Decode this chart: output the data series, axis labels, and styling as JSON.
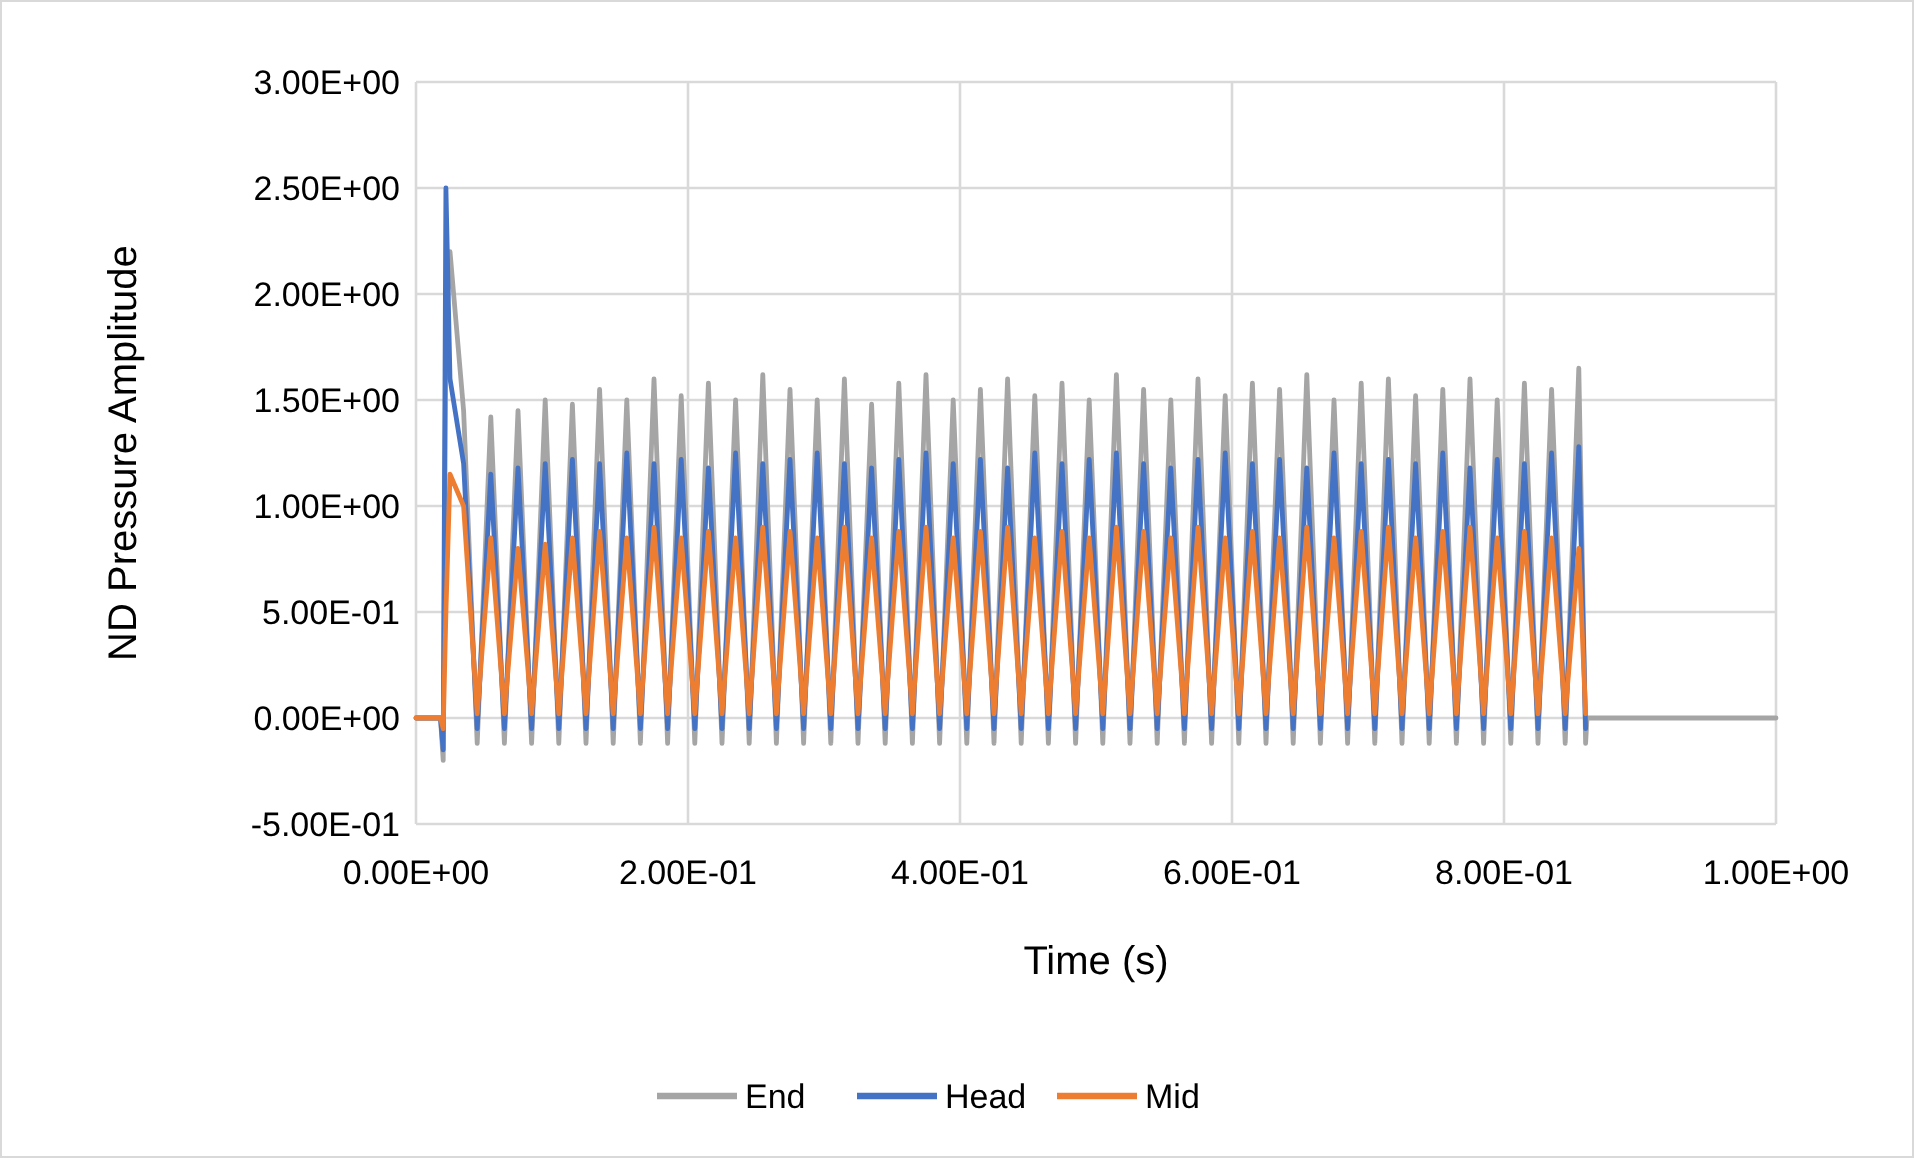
{
  "chart_data": {
    "type": "line",
    "xlabel": "Time (s)",
    "ylabel": "ND Pressure Amplitude",
    "x": [
      0,
      0.018,
      0.02,
      0.022,
      0.025,
      0.035,
      0.045,
      0.055,
      0.065,
      0.075,
      0.085,
      0.095,
      0.105,
      0.115,
      0.125,
      0.135,
      0.145,
      0.155,
      0.165,
      0.175,
      0.185,
      0.195,
      0.205,
      0.215,
      0.225,
      0.235,
      0.245,
      0.255,
      0.265,
      0.275,
      0.285,
      0.295,
      0.305,
      0.315,
      0.325,
      0.335,
      0.345,
      0.355,
      0.365,
      0.375,
      0.385,
      0.395,
      0.405,
      0.415,
      0.425,
      0.435,
      0.445,
      0.455,
      0.465,
      0.475,
      0.485,
      0.495,
      0.505,
      0.515,
      0.525,
      0.535,
      0.545,
      0.555,
      0.565,
      0.575,
      0.585,
      0.595,
      0.605,
      0.615,
      0.625,
      0.635,
      0.645,
      0.655,
      0.665,
      0.675,
      0.685,
      0.695,
      0.705,
      0.715,
      0.725,
      0.735,
      0.745,
      0.755,
      0.765,
      0.775,
      0.785,
      0.795,
      0.805,
      0.815,
      0.825,
      0.835,
      0.845,
      0.855,
      0.86,
      0.861,
      1.0
    ],
    "series": [
      {
        "name": "End",
        "color": "#a5a5a5",
        "values": [
          0,
          0,
          -0.2,
          1.8,
          2.2,
          1.45,
          -0.12,
          1.42,
          -0.12,
          1.45,
          -0.12,
          1.5,
          -0.12,
          1.48,
          -0.12,
          1.55,
          -0.12,
          1.5,
          -0.12,
          1.6,
          -0.12,
          1.52,
          -0.12,
          1.58,
          -0.12,
          1.5,
          -0.12,
          1.62,
          -0.12,
          1.55,
          -0.12,
          1.5,
          -0.12,
          1.6,
          -0.12,
          1.48,
          -0.12,
          1.58,
          -0.12,
          1.62,
          -0.12,
          1.5,
          -0.12,
          1.55,
          -0.12,
          1.6,
          -0.12,
          1.52,
          -0.12,
          1.58,
          -0.12,
          1.5,
          -0.12,
          1.62,
          -0.12,
          1.55,
          -0.12,
          1.5,
          -0.12,
          1.6,
          -0.12,
          1.52,
          -0.12,
          1.58,
          -0.12,
          1.55,
          -0.12,
          1.62,
          -0.12,
          1.5,
          -0.12,
          1.58,
          -0.12,
          1.6,
          -0.12,
          1.52,
          -0.12,
          1.55,
          -0.12,
          1.6,
          -0.12,
          1.5,
          -0.12,
          1.58,
          -0.12,
          1.55,
          -0.12,
          1.65,
          -0.12,
          0,
          0
        ]
      },
      {
        "name": "Head",
        "color": "#4472c4",
        "values": [
          0,
          0,
          -0.15,
          2.5,
          1.6,
          1.2,
          -0.05,
          1.15,
          -0.05,
          1.18,
          -0.05,
          1.2,
          -0.05,
          1.22,
          -0.05,
          1.2,
          -0.05,
          1.25,
          -0.05,
          1.2,
          -0.05,
          1.22,
          -0.05,
          1.18,
          -0.05,
          1.25,
          -0.05,
          1.2,
          -0.05,
          1.22,
          -0.05,
          1.25,
          -0.05,
          1.2,
          -0.05,
          1.18,
          -0.05,
          1.22,
          -0.05,
          1.25,
          -0.05,
          1.2,
          -0.05,
          1.22,
          -0.05,
          1.18,
          -0.05,
          1.25,
          -0.05,
          1.2,
          -0.05,
          1.22,
          -0.05,
          1.25,
          -0.05,
          1.2,
          -0.05,
          1.18,
          -0.05,
          1.22,
          -0.05,
          1.25,
          -0.05,
          1.2,
          -0.05,
          1.22,
          -0.05,
          1.18,
          -0.05,
          1.25,
          -0.05,
          1.2,
          -0.05,
          1.22,
          -0.05,
          1.2,
          -0.05,
          1.25,
          -0.05,
          1.18,
          -0.05,
          1.22,
          -0.05,
          1.2,
          -0.05,
          1.25,
          -0.05,
          1.28,
          -0.05,
          null,
          null
        ]
      },
      {
        "name": "Mid",
        "color": "#ed7d31",
        "values": [
          0,
          0,
          -0.05,
          0.5,
          1.15,
          1.0,
          0.02,
          0.85,
          0.02,
          0.8,
          0.02,
          0.82,
          0.02,
          0.85,
          0.02,
          0.88,
          0.02,
          0.85,
          0.02,
          0.9,
          0.02,
          0.85,
          0.02,
          0.88,
          0.02,
          0.85,
          0.02,
          0.9,
          0.02,
          0.88,
          0.02,
          0.85,
          0.02,
          0.9,
          0.02,
          0.85,
          0.02,
          0.88,
          0.02,
          0.9,
          0.02,
          0.85,
          0.02,
          0.88,
          0.02,
          0.9,
          0.02,
          0.85,
          0.02,
          0.88,
          0.02,
          0.85,
          0.02,
          0.9,
          0.02,
          0.88,
          0.02,
          0.85,
          0.02,
          0.9,
          0.02,
          0.85,
          0.02,
          0.88,
          0.02,
          0.85,
          0.02,
          0.9,
          0.02,
          0.85,
          0.02,
          0.88,
          0.02,
          0.9,
          0.02,
          0.85,
          0.02,
          0.88,
          0.02,
          0.9,
          0.02,
          0.85,
          0.02,
          0.88,
          0.02,
          0.85,
          0.02,
          0.8,
          0.02,
          null,
          null
        ]
      }
    ],
    "xlim": [
      0,
      1
    ],
    "xticks": [
      {
        "value": 0,
        "label": "0.00E+00"
      },
      {
        "value": 0.2,
        "label": "2.00E-01"
      },
      {
        "value": 0.4,
        "label": "4.00E-01"
      },
      {
        "value": 0.6,
        "label": "6.00E-01"
      },
      {
        "value": 0.8,
        "label": "8.00E-01"
      },
      {
        "value": 1,
        "label": "1.00E+00"
      }
    ],
    "ylim": [
      -0.5,
      3
    ],
    "yticks": [
      {
        "value": -0.5,
        "label": "-5.00E-01"
      },
      {
        "value": 0,
        "label": "0.00E+00"
      },
      {
        "value": 0.5,
        "label": "5.00E-01"
      },
      {
        "value": 1,
        "label": "1.00E+00"
      },
      {
        "value": 1.5,
        "label": "1.50E+00"
      },
      {
        "value": 2,
        "label": "2.00E+00"
      },
      {
        "value": 2.5,
        "label": "2.50E+00"
      },
      {
        "value": 3,
        "label": "3.00E+00"
      }
    ],
    "grid": true,
    "legend": "bottom",
    "marker": "none",
    "line_style": "solid"
  }
}
